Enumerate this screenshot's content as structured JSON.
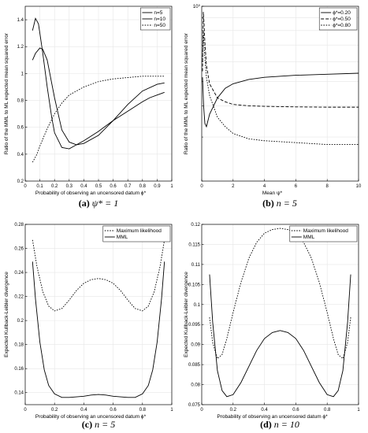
{
  "chart_data": [
    {
      "type": "line",
      "caption_label": "(a)",
      "caption_text": "ψ* = 1",
      "xlabel": "Probability of observing an uncensored datum ϕ*",
      "ylabel": "Ratio of the MML to ML expected mean squared error",
      "xlim": [
        0,
        1
      ],
      "ylim": [
        0.2,
        1.5
      ],
      "xticks": [
        0,
        0.1,
        0.2,
        0.3,
        0.4,
        0.5,
        0.6,
        0.7,
        0.8,
        0.9,
        1
      ],
      "xticklabels": [
        "0",
        "0.1",
        "0.2",
        "0.3",
        "0.4",
        "0.5",
        "0.6",
        "0.7",
        "0.8",
        "0.9",
        "1"
      ],
      "yticks": [
        0.2,
        0.4,
        0.6,
        0.8,
        1,
        1.2,
        1.4
      ],
      "yticklabels": [
        "0.2",
        "0.4",
        "0.6",
        "0.8",
        "1",
        "1.2",
        "1.4"
      ],
      "yscale": "linear",
      "grid": true,
      "legend_position": "top-right",
      "series": [
        {
          "name": "n=5",
          "style": "solid",
          "x": [
            0.05,
            0.07,
            0.09,
            0.1,
            0.12,
            0.15,
            0.18,
            0.2,
            0.25,
            0.3,
            0.35,
            0.4,
            0.5,
            0.6,
            0.7,
            0.8,
            0.85,
            0.9,
            0.95
          ],
          "y": [
            1.32,
            1.41,
            1.37,
            1.3,
            1.15,
            0.9,
            0.68,
            0.56,
            0.45,
            0.44,
            0.47,
            0.5,
            0.57,
            0.65,
            0.72,
            0.79,
            0.82,
            0.84,
            0.86
          ]
        },
        {
          "name": "n=10",
          "style": "solid",
          "x": [
            0.05,
            0.07,
            0.1,
            0.12,
            0.15,
            0.2,
            0.25,
            0.3,
            0.35,
            0.4,
            0.5,
            0.6,
            0.7,
            0.8,
            0.9,
            0.95
          ],
          "y": [
            1.1,
            1.15,
            1.19,
            1.18,
            1.1,
            0.82,
            0.58,
            0.49,
            0.47,
            0.48,
            0.54,
            0.65,
            0.77,
            0.87,
            0.92,
            0.93
          ]
        },
        {
          "name": "n=50",
          "style": "dotted",
          "x": [
            0.05,
            0.08,
            0.1,
            0.15,
            0.2,
            0.25,
            0.3,
            0.4,
            0.5,
            0.6,
            0.7,
            0.8,
            0.9,
            0.95
          ],
          "y": [
            0.34,
            0.4,
            0.46,
            0.59,
            0.7,
            0.78,
            0.84,
            0.9,
            0.94,
            0.96,
            0.97,
            0.98,
            0.98,
            0.98
          ]
        }
      ]
    },
    {
      "type": "line",
      "caption_label": "(b)",
      "caption_text": "n = 5",
      "xlabel": "Mean ψ*",
      "ylabel": "Ratio of the MML to ML expected mean squared error",
      "xlim": [
        0,
        10
      ],
      "ylim": [
        0.2,
        1
      ],
      "xticks": [
        0,
        2,
        4,
        6,
        8,
        10
      ],
      "xticklabels": [
        "0",
        "2",
        "4",
        "6",
        "8",
        "10"
      ],
      "ytick_marks": [
        0.2,
        0.3,
        0.4,
        0.5,
        0.6,
        0.7,
        0.8,
        0.9,
        1
      ],
      "yticks": [
        1
      ],
      "yticklabels": [
        "10⁰"
      ],
      "yscale": "log",
      "grid": true,
      "legend_position": "top-right",
      "series": [
        {
          "name": "ϕ*=0.20",
          "style": "solid",
          "x": [
            0.05,
            0.12,
            0.2,
            0.3,
            0.5,
            1,
            1.5,
            2,
            3,
            4,
            6,
            8,
            10
          ],
          "y": [
            0.52,
            0.4,
            0.34,
            0.33,
            0.37,
            0.43,
            0.47,
            0.49,
            0.51,
            0.52,
            0.53,
            0.535,
            0.54
          ]
        },
        {
          "name": "ϕ*=0.50",
          "style": "dashed",
          "x": [
            0.05,
            0.1,
            0.15,
            0.2,
            0.3,
            0.5,
            1,
            1.5,
            2,
            3,
            4,
            6,
            8,
            10
          ],
          "y": [
            0.55,
            0.95,
            0.85,
            0.72,
            0.58,
            0.49,
            0.43,
            0.415,
            0.405,
            0.4,
            0.398,
            0.396,
            0.395,
            0.395
          ]
        },
        {
          "name": "ϕ*=0.80",
          "style": "dotted",
          "x": [
            0.05,
            0.1,
            0.15,
            0.2,
            0.3,
            0.5,
            1,
            1.5,
            2,
            3,
            4,
            6,
            8,
            10
          ],
          "y": [
            0.6,
            0.8,
            0.7,
            0.62,
            0.52,
            0.44,
            0.36,
            0.33,
            0.31,
            0.295,
            0.29,
            0.285,
            0.28,
            0.28
          ]
        }
      ]
    },
    {
      "type": "line",
      "caption_label": "(c)",
      "caption_text": "n = 5",
      "xlabel": "Probability of observing an uncensored datum ϕ*",
      "ylabel": "Expected Kullback-Leibler divergence",
      "xlim": [
        0,
        1
      ],
      "ylim": [
        0.13,
        0.28
      ],
      "xticks": [
        0,
        0.2,
        0.4,
        0.6,
        0.8,
        1
      ],
      "xticklabels": [
        "0",
        "0.2",
        "0.4",
        "0.6",
        "0.8",
        "1"
      ],
      "yticks": [
        0.14,
        0.16,
        0.18,
        0.2,
        0.22,
        0.24,
        0.26,
        0.28
      ],
      "yticklabels": [
        "0.14",
        "0.16",
        "0.18",
        "0.2",
        "0.22",
        "0.24",
        "0.26",
        "0.28"
      ],
      "yscale": "linear",
      "grid": true,
      "legend_position": "top-right",
      "series": [
        {
          "name": "Maximum likelihood",
          "style": "dotted",
          "x": [
            0.05,
            0.08,
            0.12,
            0.16,
            0.2,
            0.25,
            0.3,
            0.35,
            0.4,
            0.45,
            0.5,
            0.55,
            0.6,
            0.65,
            0.7,
            0.75,
            0.8,
            0.84,
            0.88,
            0.92,
            0.95
          ],
          "y": [
            0.267,
            0.245,
            0.224,
            0.212,
            0.208,
            0.21,
            0.217,
            0.225,
            0.231,
            0.234,
            0.235,
            0.234,
            0.231,
            0.225,
            0.217,
            0.21,
            0.208,
            0.212,
            0.224,
            0.245,
            0.267
          ]
        },
        {
          "name": "MML",
          "style": "solid",
          "x": [
            0.05,
            0.07,
            0.1,
            0.13,
            0.16,
            0.2,
            0.25,
            0.3,
            0.35,
            0.4,
            0.45,
            0.5,
            0.55,
            0.6,
            0.65,
            0.7,
            0.75,
            0.8,
            0.84,
            0.87,
            0.9,
            0.93,
            0.95
          ],
          "y": [
            0.249,
            0.218,
            0.182,
            0.159,
            0.146,
            0.139,
            0.136,
            0.136,
            0.1365,
            0.137,
            0.138,
            0.1385,
            0.138,
            0.137,
            0.1365,
            0.136,
            0.136,
            0.139,
            0.146,
            0.159,
            0.182,
            0.218,
            0.249
          ]
        }
      ]
    },
    {
      "type": "line",
      "caption_label": "(d)",
      "caption_text": "n = 10",
      "xlabel": "Probability of observing an uncensored datum ϕ*",
      "ylabel": "Expected Kullback-Leibler divergence",
      "xlim": [
        0,
        1
      ],
      "ylim": [
        0.075,
        0.12
      ],
      "xticks": [
        0,
        0.2,
        0.4,
        0.6,
        0.8,
        1
      ],
      "xticklabels": [
        "0",
        "0.2",
        "0.4",
        "0.6",
        "0.8",
        "1"
      ],
      "yticks": [
        0.075,
        0.08,
        0.085,
        0.09,
        0.095,
        0.1,
        0.105,
        0.11,
        0.115,
        0.12
      ],
      "yticklabels": [
        "0.075",
        "0.08",
        "0.085",
        "0.09",
        "0.095",
        "0.1",
        "0.105",
        "0.11",
        "0.115",
        "0.12"
      ],
      "yscale": "linear",
      "grid": true,
      "legend_position": "top-right",
      "series": [
        {
          "name": "Maximum likelihood",
          "style": "dotted",
          "x": [
            0.05,
            0.07,
            0.1,
            0.13,
            0.16,
            0.2,
            0.25,
            0.3,
            0.35,
            0.4,
            0.45,
            0.5,
            0.55,
            0.6,
            0.65,
            0.7,
            0.75,
            0.8,
            0.84,
            0.87,
            0.9,
            0.93,
            0.95
          ],
          "y": [
            0.0968,
            0.0905,
            0.0865,
            0.0875,
            0.0915,
            0.098,
            0.1055,
            0.1115,
            0.1155,
            0.1178,
            0.1187,
            0.119,
            0.1187,
            0.1178,
            0.1155,
            0.1115,
            0.1055,
            0.098,
            0.0915,
            0.0875,
            0.0865,
            0.0905,
            0.0968
          ]
        },
        {
          "name": "MML",
          "style": "solid",
          "x": [
            0.05,
            0.07,
            0.1,
            0.13,
            0.16,
            0.2,
            0.25,
            0.3,
            0.35,
            0.4,
            0.45,
            0.5,
            0.55,
            0.6,
            0.65,
            0.7,
            0.75,
            0.8,
            0.84,
            0.87,
            0.9,
            0.93,
            0.95
          ],
          "y": [
            0.1075,
            0.0955,
            0.0835,
            0.0785,
            0.077,
            0.0775,
            0.0805,
            0.0845,
            0.0885,
            0.0915,
            0.093,
            0.0935,
            0.093,
            0.0915,
            0.0885,
            0.0845,
            0.0805,
            0.0775,
            0.077,
            0.0785,
            0.0835,
            0.0955,
            0.1075
          ]
        }
      ]
    }
  ]
}
